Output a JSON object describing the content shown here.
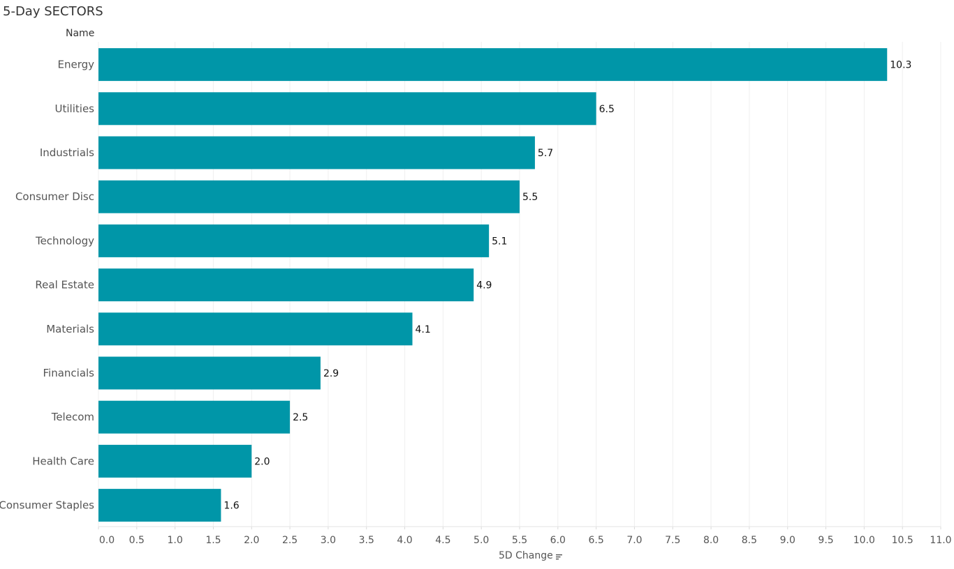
{
  "header": {
    "title": "5-Day SECTORS",
    "row_header": "Name"
  },
  "chart_data": {
    "type": "bar",
    "orientation": "horizontal",
    "categories": [
      "Energy",
      "Utilities",
      "Industrials",
      "Consumer Disc",
      "Technology",
      "Real Estate",
      "Materials",
      "Financials",
      "Telecom",
      "Health Care",
      "Consumer Staples"
    ],
    "values": [
      10.3,
      6.5,
      5.7,
      5.5,
      5.1,
      4.9,
      4.1,
      2.9,
      2.5,
      2.0,
      1.6
    ],
    "value_labels": [
      "10.3",
      "6.5",
      "5.7",
      "5.5",
      "5.1",
      "4.9",
      "4.1",
      "2.9",
      "2.5",
      "2.0",
      "1.6"
    ],
    "title": "5-Day SECTORS",
    "xlabel": "5D Change",
    "ylabel": "Name",
    "xlim": [
      0,
      11.0
    ],
    "xticks": [
      "0.0",
      "0.5",
      "1.0",
      "1.5",
      "2.0",
      "2.5",
      "3.0",
      "3.5",
      "4.0",
      "4.5",
      "5.0",
      "5.5",
      "6.0",
      "6.5",
      "7.0",
      "7.5",
      "8.0",
      "8.5",
      "9.0",
      "9.5",
      "10.0",
      "10.5",
      "11.0"
    ],
    "grid": true,
    "bar_color": "#0096A8",
    "sort_icon": "sort-descending-icon"
  }
}
